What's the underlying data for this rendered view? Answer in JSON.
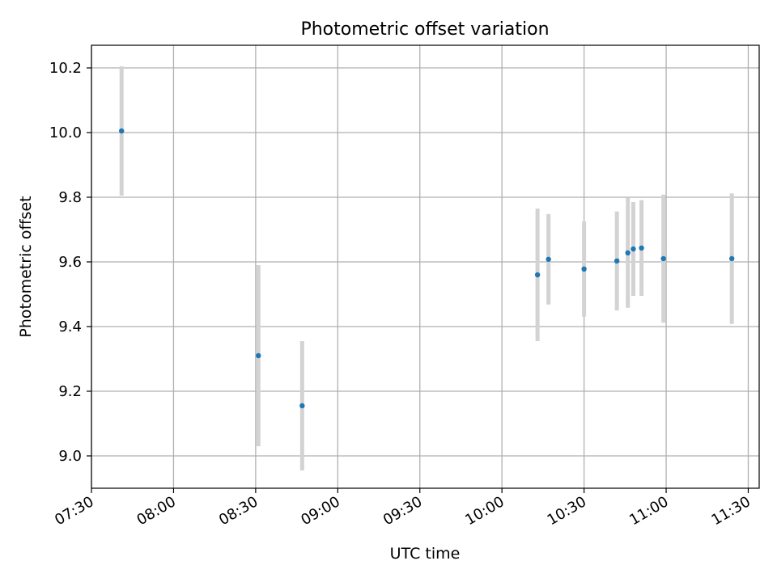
{
  "chart_data": {
    "type": "scatter",
    "title": "Photometric offset variation",
    "xlabel": "UTC time",
    "ylabel": "Photometric offset",
    "x_unit": "minutes",
    "xlim": [
      "07:30",
      "11:34"
    ],
    "ylim": [
      8.9,
      10.27
    ],
    "x_ticks": [
      "07:30",
      "08:00",
      "08:30",
      "09:00",
      "09:30",
      "10:00",
      "10:30",
      "11:00",
      "11:30"
    ],
    "y_ticks": [
      9.0,
      9.2,
      9.4,
      9.6,
      9.8,
      10.0,
      10.2
    ],
    "y_tick_labels": [
      "9.0",
      "9.2",
      "9.4",
      "9.6",
      "9.8",
      "10.0",
      "10.2"
    ],
    "grid": true,
    "points_color": "#1f77b4",
    "errorbar_color": "#d3d3d3",
    "points": [
      {
        "x": "07:41",
        "y": 10.005,
        "yerr": 0.2
      },
      {
        "x": "08:31",
        "y": 9.31,
        "yerr": 0.28
      },
      {
        "x": "08:47",
        "y": 9.155,
        "yerr": 0.2
      },
      {
        "x": "10:13",
        "y": 9.56,
        "yerr": 0.205
      },
      {
        "x": "10:17",
        "y": 9.608,
        "yerr": 0.14
      },
      {
        "x": "10:30",
        "y": 9.578,
        "yerr": 0.147
      },
      {
        "x": "10:42",
        "y": 9.603,
        "yerr": 0.153
      },
      {
        "x": "10:46",
        "y": 9.628,
        "yerr": 0.17
      },
      {
        "x": "10:48",
        "y": 9.64,
        "yerr": 0.145
      },
      {
        "x": "10:51",
        "y": 9.643,
        "yerr": 0.148
      },
      {
        "x": "10:59",
        "y": 9.61,
        "yerr": 0.198
      },
      {
        "x": "11:24",
        "y": 9.61,
        "yerr": 0.202
      }
    ]
  }
}
